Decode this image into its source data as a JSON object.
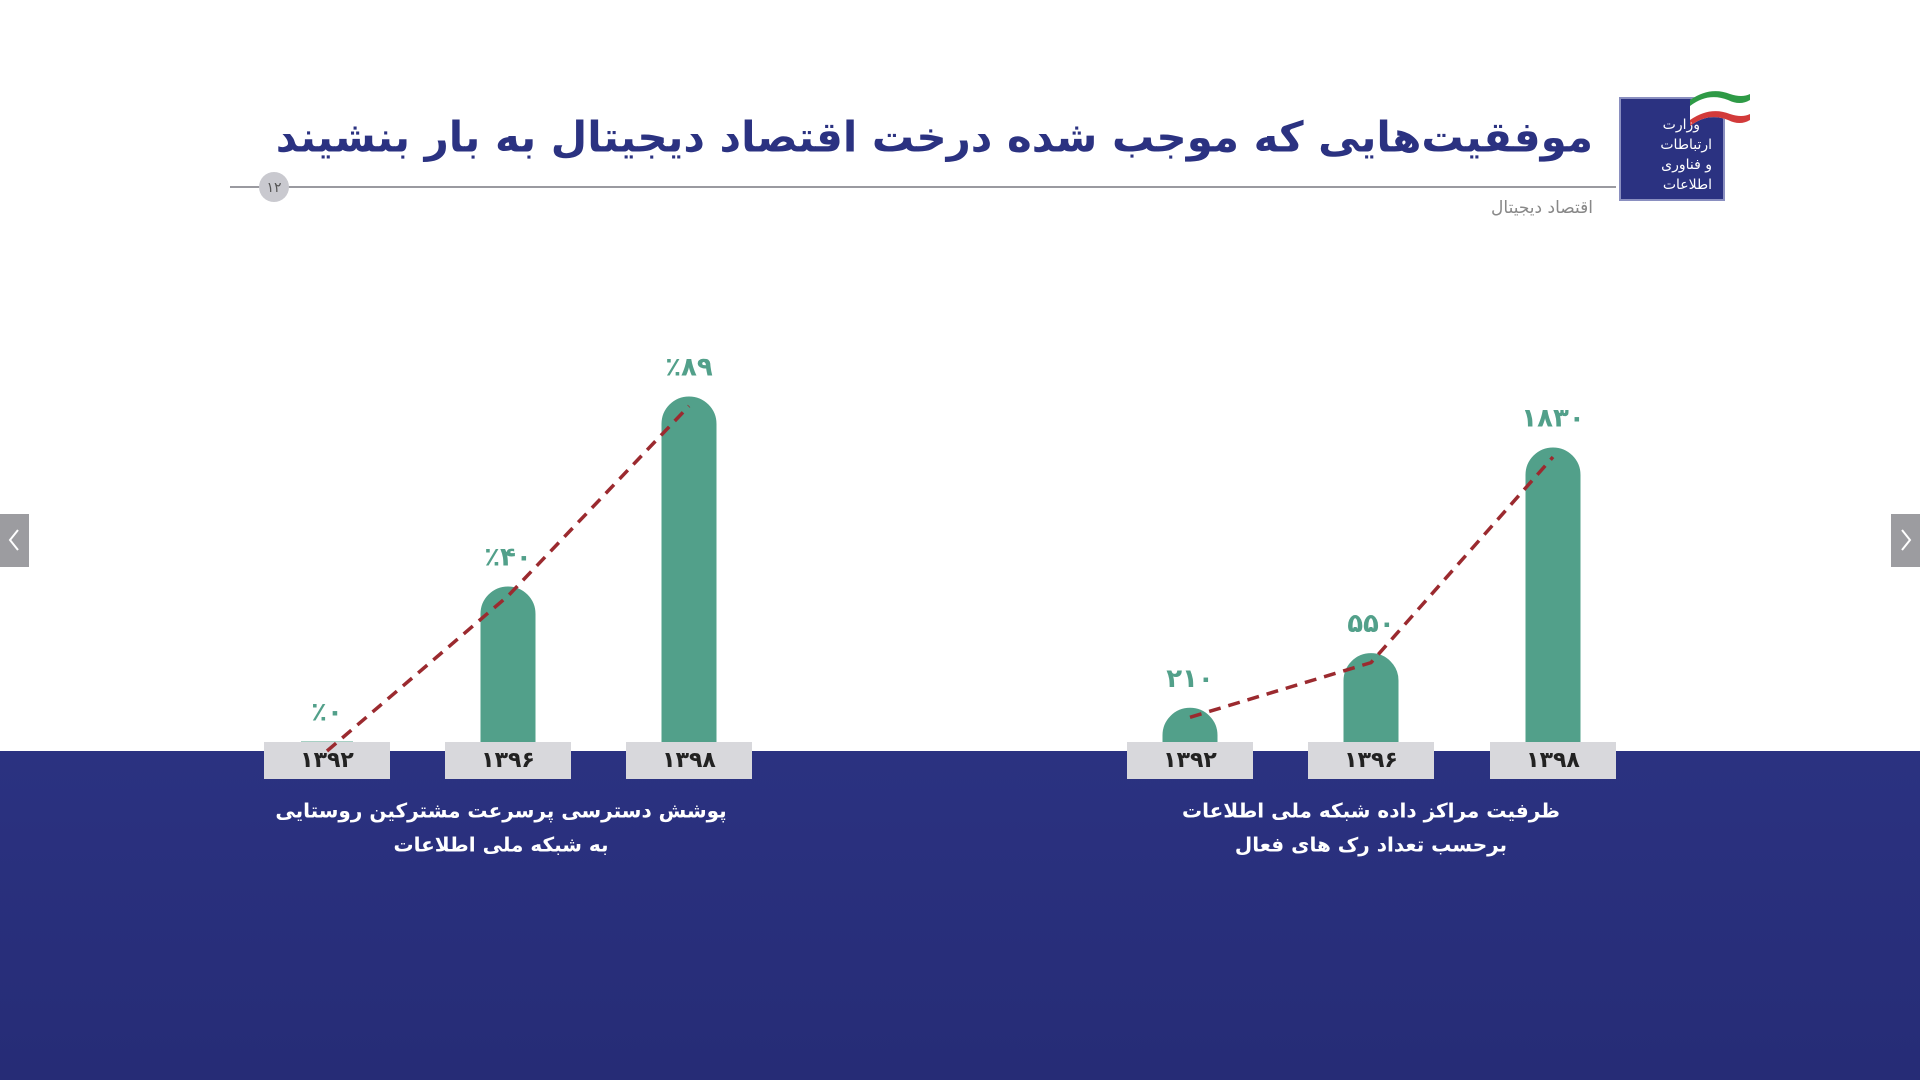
{
  "header": {
    "title": "موفقیت‌هایی که موجب شده درخت اقتصاد دیجیتال به بار بنشیند",
    "subtitle": "اقتصاد دیجیتال",
    "page_number": "۱۲"
  },
  "logo": {
    "text": [
      "وزارت",
      "ارتباطات",
      "و فناوری",
      "اطلاعات"
    ]
  },
  "chart_data": [
    {
      "type": "bar",
      "title": [
        "پوشش دسترسی پرسرعت مشترکین روستایی",
        "به شبکه ملی اطلاعات"
      ],
      "categories": [
        "۱۳۹۲",
        "۱۳۹۶",
        "۱۳۹۸"
      ],
      "values": [
        0,
        40,
        89
      ],
      "value_labels": [
        "٪۰",
        "٪۴۰",
        "٪۸۹"
      ],
      "color": "#52a08a",
      "trend_color": "#9b2a2f"
    },
    {
      "type": "bar",
      "title": [
        "ظرفیت مراکز داده شبکه ملی اطلاعات",
        "برحسب تعداد رک های فعال"
      ],
      "categories": [
        "۱۳۹۲",
        "۱۳۹۶",
        "۱۳۹۸"
      ],
      "values": [
        210,
        550,
        1830
      ],
      "value_labels": [
        "۲۱۰",
        "۵۵۰",
        "۱۸۳۰"
      ],
      "color": "#52a08a",
      "trend_color": "#9b2a2f"
    }
  ]
}
